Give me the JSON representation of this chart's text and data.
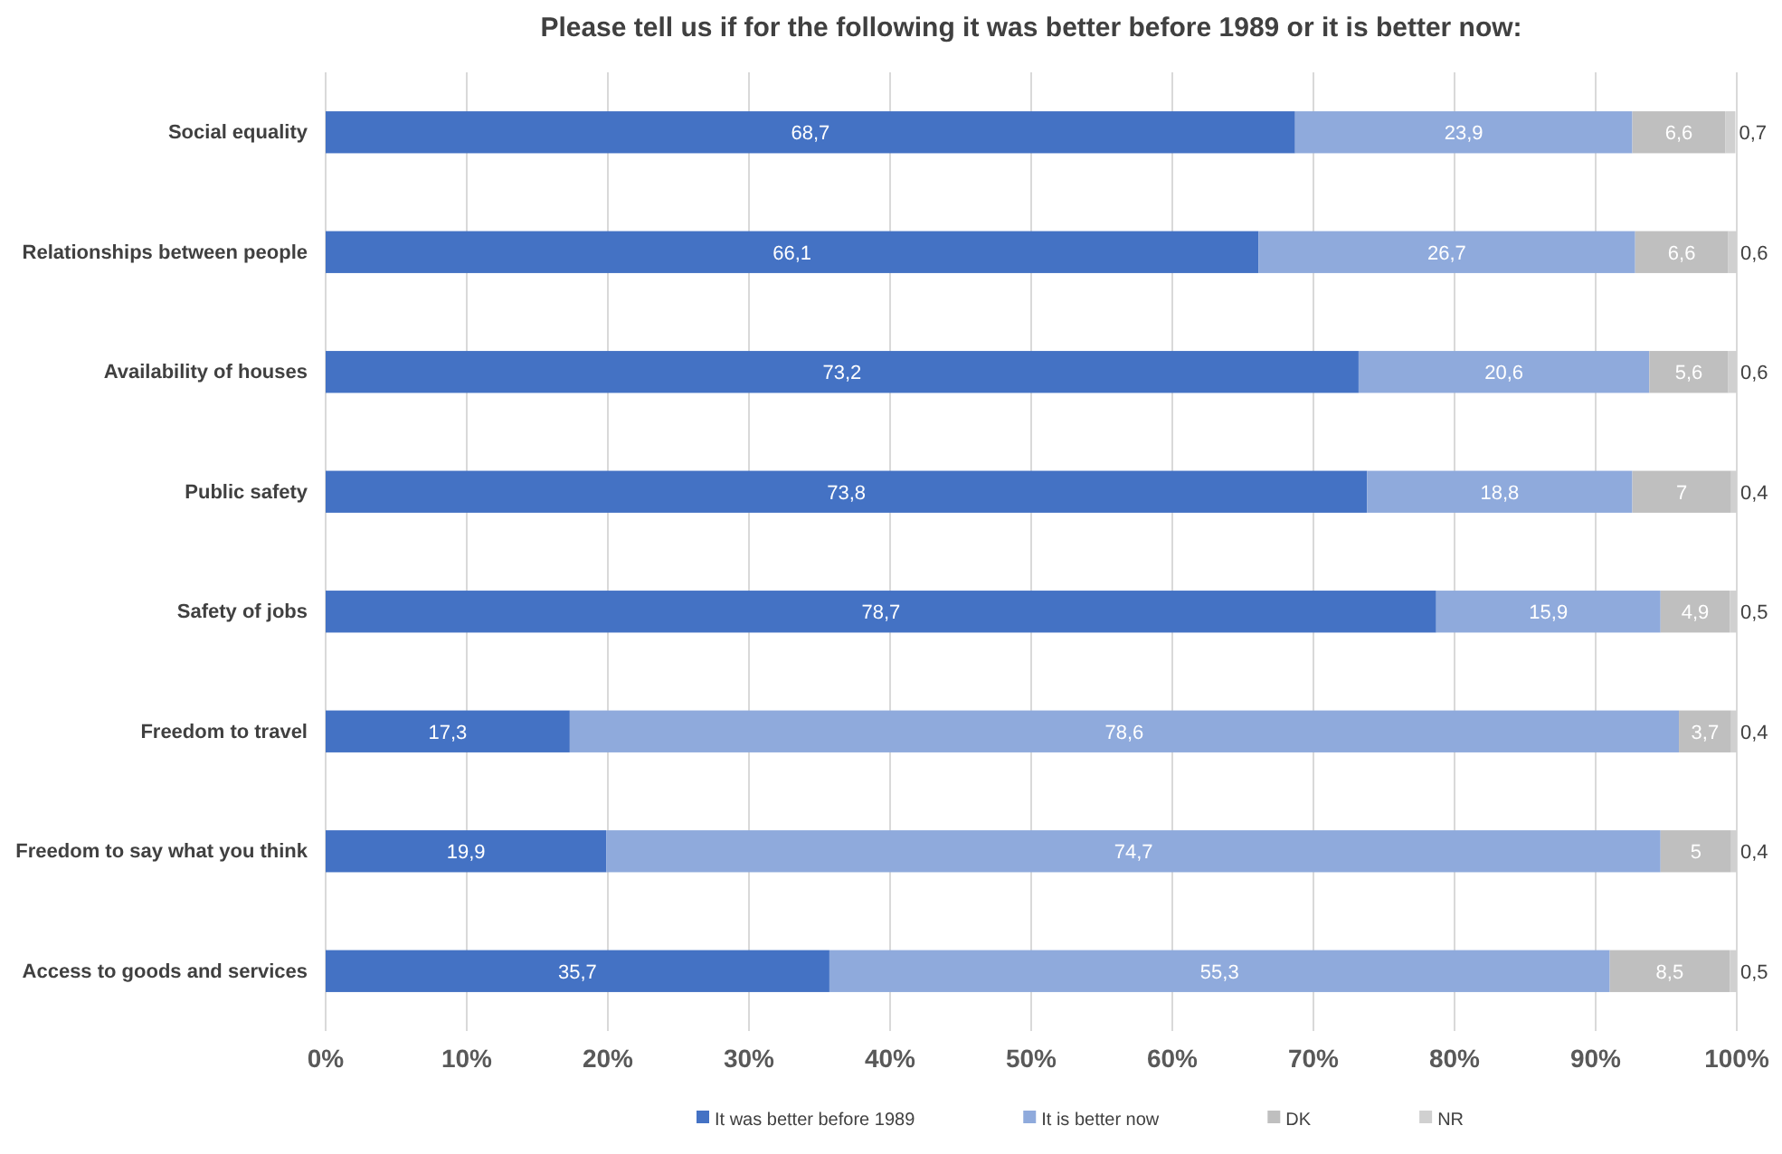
{
  "chart_data": {
    "type": "bar",
    "orientation": "horizontal",
    "stacked": true,
    "title": "Please tell us if for the following it was better before 1989 or it is  better now:",
    "categories": [
      "Social equality",
      "Relationships between people",
      "Availability of houses",
      "Public safety",
      "Safety of jobs",
      "Freedom to travel",
      "Freedom to say what you think",
      "Access to goods and services"
    ],
    "series": [
      {
        "name": "It was better before 1989",
        "color": "#4472c4",
        "values": [
          68.7,
          66.1,
          73.2,
          73.8,
          78.7,
          17.3,
          19.9,
          35.7
        ],
        "value_labels": [
          "68,7",
          "66,1",
          "73,2",
          "73,8",
          "78,7",
          "17,3",
          "19,9",
          "35,7"
        ]
      },
      {
        "name": "It is better now",
        "color": "#8faadc",
        "values": [
          23.9,
          26.7,
          20.6,
          18.8,
          15.9,
          78.6,
          74.7,
          55.3
        ],
        "value_labels": [
          "23,9",
          "26,7",
          "20,6",
          "18,8",
          "15,9",
          "78,6",
          "74,7",
          "55,3"
        ]
      },
      {
        "name": "DK",
        "color": "#bfbfbf",
        "values": [
          6.6,
          6.6,
          5.6,
          7,
          4.9,
          3.7,
          5,
          8.5
        ],
        "value_labels": [
          "6,6",
          "6,6",
          "5,6",
          "7",
          "4,9",
          "3,7",
          "5",
          "8,5"
        ]
      },
      {
        "name": "NR",
        "color": "#d0d0d0",
        "values": [
          0.7,
          0.6,
          0.6,
          0.4,
          0.5,
          0.4,
          0.4,
          0.5
        ],
        "value_labels": [
          "0,7",
          "0,6",
          "0,6",
          "0,4",
          "0,5",
          "0,4",
          "0,4",
          "0,5"
        ]
      }
    ],
    "xlim": [
      0,
      100
    ],
    "xticks": [
      {
        "value": 0,
        "label": "0%"
      },
      {
        "value": 10,
        "label": "10%"
      },
      {
        "value": 20,
        "label": "20%"
      },
      {
        "value": 30,
        "label": "30%"
      },
      {
        "value": 40,
        "label": "40%"
      },
      {
        "value": 50,
        "label": "50%"
      },
      {
        "value": 60,
        "label": "60%"
      },
      {
        "value": 70,
        "label": "70%"
      },
      {
        "value": 80,
        "label": "80%"
      },
      {
        "value": 90,
        "label": "90%"
      },
      {
        "value": 100,
        "label": "100%"
      }
    ],
    "grid": "x",
    "legend": "bottom"
  }
}
